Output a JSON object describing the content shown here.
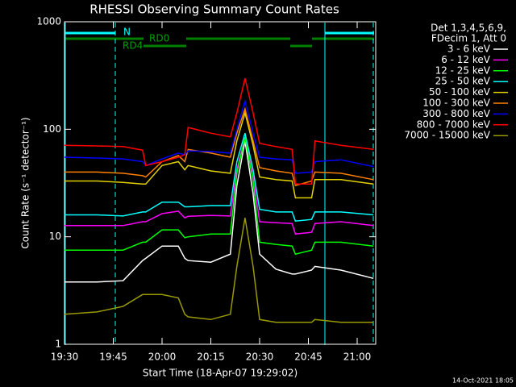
{
  "chart_data": {
    "type": "line",
    "title": "RHESSI Observing Summary Count Rates",
    "x_label": "Start Time (18-Apr-07 19:29:02)",
    "y_label": "Count Rate (s⁻¹ detector⁻¹)",
    "footer": "14-Oct-2021 18:05",
    "legend_header": [
      "Det 1,3,4,5,6,9,",
      "FDecim 1, Att 0"
    ],
    "annotations": [
      "N",
      "RD0",
      "RD4"
    ],
    "log_y": true,
    "legend": "right",
    "xlim": [
      1170,
      1265.7
    ],
    "xticks": [
      {
        "value": 1170,
        "label": "19:30"
      },
      {
        "value": 1185,
        "label": "19:45"
      },
      {
        "value": 1200,
        "label": "20:00"
      },
      {
        "value": 1215,
        "label": "20:15"
      },
      {
        "value": 1230,
        "label": "20:30"
      },
      {
        "value": 1245,
        "label": "20:45"
      },
      {
        "value": 1260,
        "label": "21:00"
      }
    ],
    "ylim": [
      1,
      1000
    ],
    "yticks": [
      1,
      10,
      100,
      1000
    ],
    "x": [
      1170,
      1180,
      1188,
      1194,
      1195,
      1200,
      1205,
      1207,
      1208,
      1215,
      1221,
      1223,
      1225.5,
      1228,
      1230,
      1235,
      1240,
      1241,
      1246,
      1247,
      1255,
      1265
    ],
    "series": [
      {
        "name": "3 - 6 keV",
        "color": "#ffffff",
        "values": [
          3.8,
          3.8,
          3.9,
          6,
          6.3,
          8.2,
          8.2,
          6.3,
          6,
          5.8,
          6.9,
          30,
          78,
          25,
          6.9,
          5,
          4.5,
          4.5,
          4.9,
          5.3,
          4.9,
          4.1
        ]
      },
      {
        "name": "6 - 12 keV",
        "color": "#ff00ff",
        "values": [
          12.7,
          12.7,
          12.7,
          13.8,
          13.8,
          16.4,
          17.3,
          15,
          15.5,
          15.8,
          15.6,
          42,
          84,
          36,
          13.8,
          13.5,
          13.3,
          10.6,
          11,
          13.3,
          13.8,
          12.7
        ]
      },
      {
        "name": "12 - 25 keV",
        "color": "#00ff00",
        "values": [
          7.5,
          7.5,
          7.5,
          8.9,
          8.9,
          11.6,
          11.6,
          9.8,
          10,
          10.6,
          10.6,
          39,
          84,
          33,
          8.9,
          8.5,
          8.2,
          6.9,
          7.5,
          8.9,
          8.9,
          8.2
        ]
      },
      {
        "name": "25 - 50 keV",
        "color": "#00ffff",
        "values": [
          16,
          16,
          15.6,
          17,
          17,
          21,
          21,
          19,
          19,
          19.5,
          19.5,
          50,
          92,
          42,
          18,
          17,
          17,
          14,
          14.5,
          17,
          17,
          16
        ]
      },
      {
        "name": "50 - 100 keV",
        "color": "#e0d000",
        "values": [
          33,
          33,
          32,
          31,
          31,
          46,
          50,
          42,
          46,
          41,
          39,
          78,
          142,
          71,
          36,
          34,
          33,
          23,
          23,
          34,
          34,
          31
        ]
      },
      {
        "name": "100 - 300 keV",
        "color": "#ff8000",
        "values": [
          40,
          40,
          39,
          37,
          36,
          50,
          57,
          50,
          65,
          60,
          55,
          92,
          155,
          78,
          44,
          41,
          39,
          30,
          33,
          40,
          39,
          34
        ]
      },
      {
        "name": "300 - 800 keV",
        "color": "#0000ff",
        "values": [
          55,
          54,
          53,
          50,
          46,
          53,
          60,
          58,
          63,
          62,
          60,
          100,
          183,
          92,
          55,
          53,
          52,
          39,
          40,
          50,
          52,
          45
        ]
      },
      {
        "name": "800 - 7000 keV",
        "color": "#ff0000",
        "values": [
          71,
          70,
          69,
          64,
          46,
          50,
          55,
          58,
          104,
          92,
          85,
          142,
          298,
          142,
          74,
          69,
          65,
          31,
          31,
          78,
          71,
          65
        ]
      },
      {
        "name": "7000 - 15000 keV",
        "color": "#999900",
        "values": [
          1.9,
          2,
          2.25,
          2.9,
          2.9,
          2.9,
          2.7,
          1.9,
          1.8,
          1.7,
          1.9,
          5.3,
          15,
          5.3,
          1.7,
          1.6,
          1.6,
          1.6,
          1.6,
          1.7,
          1.6,
          1.6
        ]
      }
    ]
  }
}
